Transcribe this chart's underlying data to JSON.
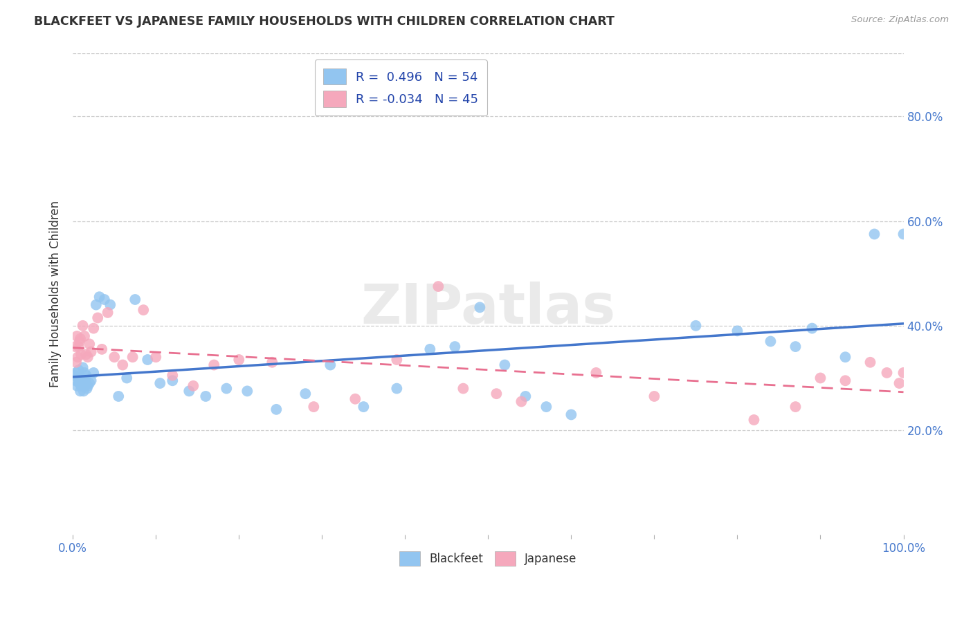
{
  "title": "BLACKFEET VS JAPANESE FAMILY HOUSEHOLDS WITH CHILDREN CORRELATION CHART",
  "source": "Source: ZipAtlas.com",
  "ylabel": "Family Households with Children",
  "xlim": [
    0.0,
    1.0
  ],
  "ylim": [
    0.0,
    0.92
  ],
  "ytick_vals": [
    0.2,
    0.4,
    0.6,
    0.8
  ],
  "ytick_labels": [
    "20.0%",
    "40.0%",
    "60.0%",
    "80.0%"
  ],
  "xtick_vals": [
    0.0,
    1.0
  ],
  "xtick_labels": [
    "0.0%",
    "100.0%"
  ],
  "blackfeet_R": "0.496",
  "blackfeet_N": "54",
  "japanese_R": "-0.034",
  "japanese_N": "45",
  "blackfeet_color": "#92C5F0",
  "japanese_color": "#F5A8BC",
  "blackfeet_line_color": "#4477CC",
  "japanese_line_color": "#E87090",
  "watermark": "ZIPatlas",
  "blackfeet_x": [
    0.002,
    0.003,
    0.004,
    0.005,
    0.006,
    0.007,
    0.008,
    0.009,
    0.01,
    0.011,
    0.012,
    0.013,
    0.014,
    0.015,
    0.016,
    0.017,
    0.018,
    0.02,
    0.022,
    0.025,
    0.028,
    0.032,
    0.038,
    0.045,
    0.055,
    0.065,
    0.075,
    0.09,
    0.105,
    0.12,
    0.14,
    0.16,
    0.185,
    0.21,
    0.245,
    0.28,
    0.31,
    0.35,
    0.39,
    0.43,
    0.46,
    0.49,
    0.52,
    0.545,
    0.57,
    0.6,
    0.75,
    0.8,
    0.84,
    0.87,
    0.89,
    0.93,
    0.965,
    1.0
  ],
  "blackfeet_y": [
    0.305,
    0.295,
    0.31,
    0.285,
    0.3,
    0.315,
    0.29,
    0.275,
    0.285,
    0.3,
    0.32,
    0.275,
    0.31,
    0.295,
    0.305,
    0.28,
    0.285,
    0.29,
    0.295,
    0.31,
    0.44,
    0.455,
    0.45,
    0.44,
    0.265,
    0.3,
    0.45,
    0.335,
    0.29,
    0.295,
    0.275,
    0.265,
    0.28,
    0.275,
    0.24,
    0.27,
    0.325,
    0.245,
    0.28,
    0.355,
    0.36,
    0.435,
    0.325,
    0.265,
    0.245,
    0.23,
    0.4,
    0.39,
    0.37,
    0.36,
    0.395,
    0.34,
    0.575,
    0.575
  ],
  "japanese_x": [
    0.003,
    0.004,
    0.005,
    0.006,
    0.007,
    0.008,
    0.009,
    0.01,
    0.012,
    0.014,
    0.016,
    0.018,
    0.02,
    0.022,
    0.025,
    0.03,
    0.035,
    0.042,
    0.05,
    0.06,
    0.072,
    0.085,
    0.1,
    0.12,
    0.145,
    0.17,
    0.2,
    0.24,
    0.29,
    0.34,
    0.39,
    0.44,
    0.47,
    0.51,
    0.54,
    0.63,
    0.7,
    0.82,
    0.87,
    0.9,
    0.93,
    0.96,
    0.98,
    0.995,
    1.0
  ],
  "japanese_y": [
    0.36,
    0.33,
    0.38,
    0.34,
    0.36,
    0.37,
    0.375,
    0.345,
    0.4,
    0.38,
    0.345,
    0.34,
    0.365,
    0.35,
    0.395,
    0.415,
    0.355,
    0.425,
    0.34,
    0.325,
    0.34,
    0.43,
    0.34,
    0.305,
    0.285,
    0.325,
    0.335,
    0.33,
    0.245,
    0.26,
    0.335,
    0.475,
    0.28,
    0.27,
    0.255,
    0.31,
    0.265,
    0.22,
    0.245,
    0.3,
    0.295,
    0.33,
    0.31,
    0.29,
    0.31
  ],
  "bg_color": "#ffffff",
  "grid_color": "#cccccc",
  "title_color": "#333333",
  "tick_color": "#4477CC",
  "legend_bf_text": "R =  0.496   N = 54",
  "legend_jp_text": "R = -0.034   N = 45"
}
